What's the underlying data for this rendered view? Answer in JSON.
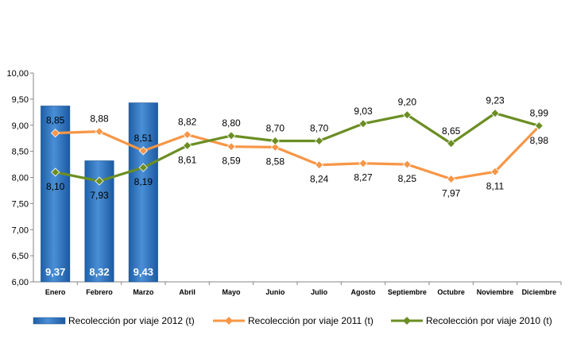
{
  "chart_data": {
    "type": "bar",
    "categories": [
      "Enero",
      "Febrero",
      "Marzo",
      "Abril",
      "Mayo",
      "Junio",
      "Julio",
      "Agosto",
      "Septiembre",
      "Octubre",
      "Noviembre",
      "Diciembre"
    ],
    "ylim": [
      6.0,
      10.0
    ],
    "yticks": [
      "6,00",
      "6,50",
      "7,00",
      "7,50",
      "8,00",
      "8,50",
      "9,00",
      "9,50",
      "10,00"
    ],
    "grid": false,
    "legend_position": "bottom",
    "series": [
      {
        "name": "Recolección por viaje 2012 (t)",
        "type": "bar",
        "color": "#2a6fb8",
        "values": [
          9.37,
          8.32,
          9.43,
          null,
          null,
          null,
          null,
          null,
          null,
          null,
          null,
          null
        ],
        "labels": [
          "9,37",
          "8,32",
          "9,43",
          "",
          "",
          "",
          "",
          "",
          "",
          "",
          "",
          ""
        ]
      },
      {
        "name": "Recolección por viaje 2011 (t)",
        "type": "line",
        "color": "#f79646",
        "values": [
          8.85,
          8.88,
          8.51,
          8.82,
          8.59,
          8.58,
          8.24,
          8.27,
          8.25,
          7.97,
          8.11,
          8.98
        ],
        "labels": [
          "8,85",
          "8,88",
          "8,51",
          "8,82",
          "8,59",
          "8,58",
          "8,24",
          "8,27",
          "8,25",
          "7,97",
          "8,11",
          "8,98"
        ]
      },
      {
        "name": "Recolección por viaje 2010 (t)",
        "type": "line",
        "color": "#6b8e23",
        "values": [
          8.1,
          7.93,
          8.19,
          8.61,
          8.8,
          8.7,
          8.7,
          9.03,
          9.2,
          8.65,
          9.23,
          8.99
        ],
        "labels": [
          "8,10",
          "7,93",
          "8,19",
          "8,61",
          "8,80",
          "8,70",
          "8,70",
          "9,03",
          "9,20",
          "8,65",
          "9,23",
          "8,99"
        ]
      }
    ]
  }
}
